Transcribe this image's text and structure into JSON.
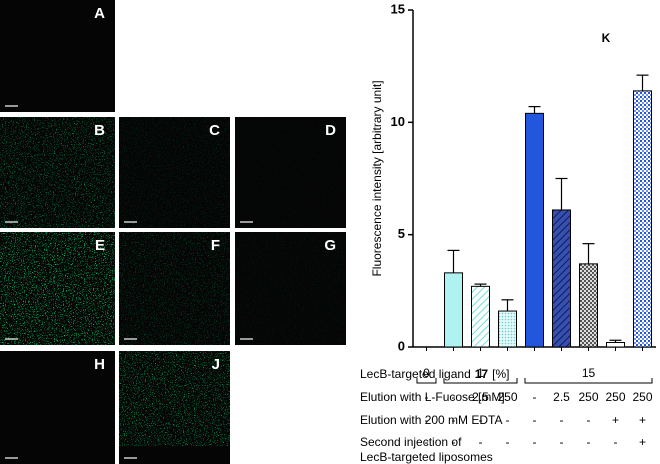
{
  "panels": [
    "A",
    "B",
    "C",
    "D",
    "E",
    "F",
    "G",
    "H",
    "J"
  ],
  "chart_data": {
    "type": "bar",
    "panel_label": "K",
    "ylabel": "Fluorescence intensity [arbitrary unit]",
    "categories": [
      null,
      null,
      null,
      null,
      null,
      null,
      null,
      null,
      null
    ],
    "values": [
      0,
      3.3,
      2.7,
      1.6,
      10.4,
      6.1,
      3.7,
      0.2,
      11.4
    ],
    "errors": [
      null,
      1.0,
      0.1,
      0.5,
      0.3,
      1.4,
      0.9,
      0.1,
      0.7
    ],
    "colors": [
      "#ffffff",
      "#aef2f2",
      "#aef2f2",
      "#aef2f2",
      "#2257dd",
      "#1d2f86",
      "#777777",
      "#ffffff",
      "#2257dd"
    ],
    "patterns": [
      "solid",
      "solid",
      "hatch",
      "dots",
      "solid",
      "hatch",
      "checker",
      "solid",
      "crosshatch"
    ],
    "ylim": [
      0,
      15
    ],
    "yticks": [
      0,
      5,
      10,
      15
    ]
  },
  "table": {
    "ligand": {
      "label": [
        "LecB-targeted ligand",
        "17",
        "[%]"
      ],
      "groups": [
        {
          "label": "0",
          "span": 1
        },
        {
          "label": "1",
          "span": 3
        },
        {
          "label": "15",
          "span": 5
        }
      ]
    },
    "rows": [
      {
        "label": [
          "Elution with L-Fucose [mM]"
        ],
        "cells": [
          "-",
          "-",
          "2.5",
          "250",
          "-",
          "2.5",
          "250",
          "250",
          "250"
        ]
      },
      {
        "label": [
          "Elution with 200 mM EDTA"
        ],
        "cells": [
          "-",
          "-",
          "-",
          "-",
          "-",
          "-",
          "-",
          "+",
          "+"
        ]
      },
      {
        "label": [
          "Second injection of",
          "LecB-targeted liposomes"
        ],
        "cells": [
          "-",
          "-",
          "-",
          "-",
          "-",
          "-",
          "-",
          "-",
          "+"
        ]
      }
    ]
  }
}
